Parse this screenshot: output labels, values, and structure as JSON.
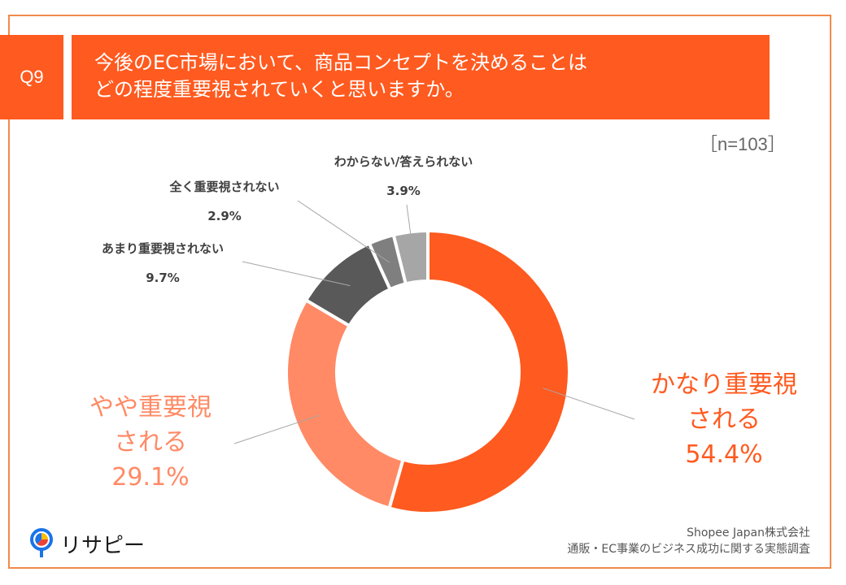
{
  "question": {
    "tag": "Q9",
    "title_lines": [
      "今後のEC市場において、商品コンセプトを決めることは",
      "どの程度重要視されていくと思いますか。"
    ]
  },
  "sample": "［n=103］",
  "chart_data": {
    "type": "pie",
    "variant": "donut",
    "categories": [
      "かなり重要視される",
      "やや重要視される",
      "あまり重要視されない",
      "全く重要視されない",
      "わからない/答えられない"
    ],
    "values": [
      54.4,
      29.1,
      9.7,
      2.9,
      3.9
    ],
    "unit": "%",
    "colors": [
      "#ff5a1f",
      "#ff8a65",
      "#595959",
      "#7f7f7f",
      "#a6a6a6"
    ],
    "labels": [
      {
        "lines": [
          "かなり重要視",
          "される"
        ],
        "value": "54.4%"
      },
      {
        "lines": [
          "やや重要視",
          "される"
        ],
        "value": "29.1%"
      },
      {
        "lines": [
          "あまり重要視されない"
        ],
        "value": "9.7%"
      },
      {
        "lines": [
          "全く重要視されない"
        ],
        "value": "2.9%"
      },
      {
        "lines": [
          "わからない/答えられない"
        ],
        "value": "3.9%"
      }
    ]
  },
  "logo": {
    "text": "リサピー",
    "colors": [
      "#1a73e8",
      "#fbbc04",
      "#ea4335"
    ]
  },
  "source_lines": [
    "Shopee Japan株式会社",
    "通販・EC事業のビジネス成功に関する実態調査"
  ],
  "colors": {
    "accent": "#ff5a1f",
    "frame": "#f08a4b",
    "label_big_1": "#ff5a1f",
    "label_big_2": "#ff8a65"
  }
}
